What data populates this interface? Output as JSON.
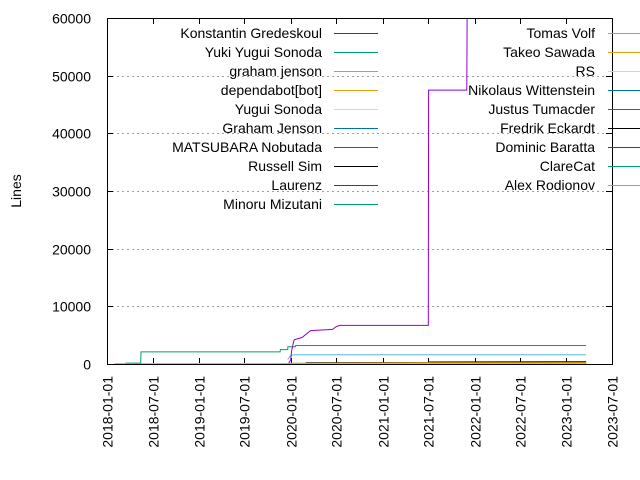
{
  "chart_data": {
    "type": "line",
    "ylabel": "Lines",
    "xlabel": "",
    "title": "",
    "ylim": [
      0,
      60000
    ],
    "xlim": [
      "2018-01-01",
      "2023-07-01"
    ],
    "yticks": [
      0,
      10000,
      20000,
      30000,
      40000,
      50000,
      60000
    ],
    "ytick_labels": [
      "0",
      "10000",
      "20000",
      "30000",
      "40000",
      "50000",
      "60000"
    ],
    "xticks": [
      "2018-01-01",
      "2018-07-01",
      "2019-01-01",
      "2019-07-01",
      "2020-01-01",
      "2020-07-01",
      "2021-01-01",
      "2021-07-01",
      "2022-01-01",
      "2022-07-01",
      "2023-01-01",
      "2023-07-01"
    ],
    "grid": true,
    "legend_position": "top",
    "series": [
      {
        "name": "Konstantin Gredeskoul",
        "color": "#9400d3",
        "points": [
          [
            "2019-12-25",
            200
          ],
          [
            "2020-01-01",
            700
          ],
          [
            "2020-01-05",
            2400
          ],
          [
            "2020-01-10",
            3300
          ],
          [
            "2020-01-15",
            4200
          ],
          [
            "2020-02-15",
            4600
          ],
          [
            "2020-03-20",
            5800
          ],
          [
            "2020-06-15",
            6000
          ],
          [
            "2020-07-01",
            6500
          ],
          [
            "2020-07-15",
            6700
          ],
          [
            "2021-07-01",
            6700
          ],
          [
            "2021-07-02",
            47500
          ],
          [
            "2021-12-01",
            47500
          ],
          [
            "2021-12-02",
            60000
          ]
        ]
      },
      {
        "name": "Yuki Yugui Sonoda",
        "color": "#009e73",
        "points": [
          [
            "2018-03-15",
            150
          ],
          [
            "2018-05-15",
            150
          ],
          [
            "2018-05-16",
            2100
          ],
          [
            "2019-11-20",
            2100
          ],
          [
            "2019-11-21",
            2500
          ],
          [
            "2019-12-20",
            2500
          ],
          [
            "2019-12-21",
            3000
          ],
          [
            "2020-01-20",
            3000
          ],
          [
            "2020-01-21",
            3200
          ],
          [
            "2023-03-20",
            3200
          ]
        ]
      },
      {
        "name": "graham jenson",
        "color": "#56b4e9",
        "points": [
          [
            "2019-12-20",
            800
          ],
          [
            "2020-01-01",
            1500
          ],
          [
            "2020-01-15",
            1600
          ],
          [
            "2023-03-20",
            1600
          ]
        ]
      },
      {
        "name": "dependabot[bot]",
        "color": "#e69f00",
        "points": [
          [
            "2019-12-20",
            100
          ],
          [
            "2021-07-01",
            200
          ],
          [
            "2023-03-20",
            250
          ]
        ]
      },
      {
        "name": "Yugui Sonoda",
        "color": "#f0e442",
        "points": [
          [
            "2018-02-01",
            30
          ],
          [
            "2023-03-20",
            30
          ]
        ]
      },
      {
        "name": "Graham Jenson",
        "color": "#0072b2",
        "points": [
          [
            "2019-12-20",
            100
          ],
          [
            "2023-03-20",
            100
          ]
        ]
      },
      {
        "name": "MATSUBARA Nobutada",
        "color": "#e51e10",
        "points": [
          [
            "2019-12-20",
            60
          ],
          [
            "2023-03-20",
            60
          ]
        ]
      },
      {
        "name": "Russell Sim",
        "color": "#000000",
        "points": [
          [
            "2020-03-01",
            200
          ],
          [
            "2021-07-01",
            250
          ],
          [
            "2021-07-02",
            350
          ],
          [
            "2023-03-20",
            400
          ]
        ]
      },
      {
        "name": "Laurenz",
        "color": "#9400d3",
        "points": [
          [
            "2020-06-01",
            20
          ],
          [
            "2023-03-20",
            20
          ]
        ]
      },
      {
        "name": "Minoru Mizutani",
        "color": "#009e73",
        "points": [
          [
            "2018-02-01",
            80
          ],
          [
            "2023-03-20",
            80
          ]
        ]
      },
      {
        "name": "Tomas Volf",
        "color": "#56b4e9",
        "points": [
          [
            "2021-01-01",
            10
          ],
          [
            "2023-03-20",
            10
          ]
        ]
      },
      {
        "name": "Takeo Sawada",
        "color": "#e69f00",
        "points": [
          [
            "2020-01-01",
            10
          ],
          [
            "2023-03-20",
            10
          ]
        ]
      },
      {
        "name": "RS",
        "color": "#f0e442",
        "points": [
          [
            "2020-01-01",
            5
          ],
          [
            "2023-03-20",
            5
          ]
        ]
      },
      {
        "name": "Nikolaus Wittenstein",
        "color": "#0072b2",
        "points": [
          [
            "2020-01-01",
            5
          ],
          [
            "2023-03-20",
            5
          ]
        ]
      },
      {
        "name": "Justus Tumacder",
        "color": "#e51e10",
        "points": [
          [
            "2020-01-01",
            5
          ],
          [
            "2023-03-20",
            5
          ]
        ]
      },
      {
        "name": "Fredrik Eckardt",
        "color": "#000000",
        "points": [
          [
            "2021-07-01",
            300
          ],
          [
            "2023-03-20",
            300
          ]
        ]
      },
      {
        "name": "Dominic Baratta",
        "color": "#9400d3",
        "points": [
          [
            "2020-01-01",
            5
          ],
          [
            "2023-03-20",
            5
          ]
        ]
      },
      {
        "name": "ClareCat",
        "color": "#009e73",
        "points": [
          [
            "2020-01-01",
            5
          ],
          [
            "2023-03-20",
            5
          ]
        ]
      },
      {
        "name": "Alex Rodionov",
        "color": "#56b4e9",
        "points": [
          [
            "2020-01-01",
            5
          ],
          [
            "2023-03-20",
            5
          ]
        ]
      }
    ]
  }
}
